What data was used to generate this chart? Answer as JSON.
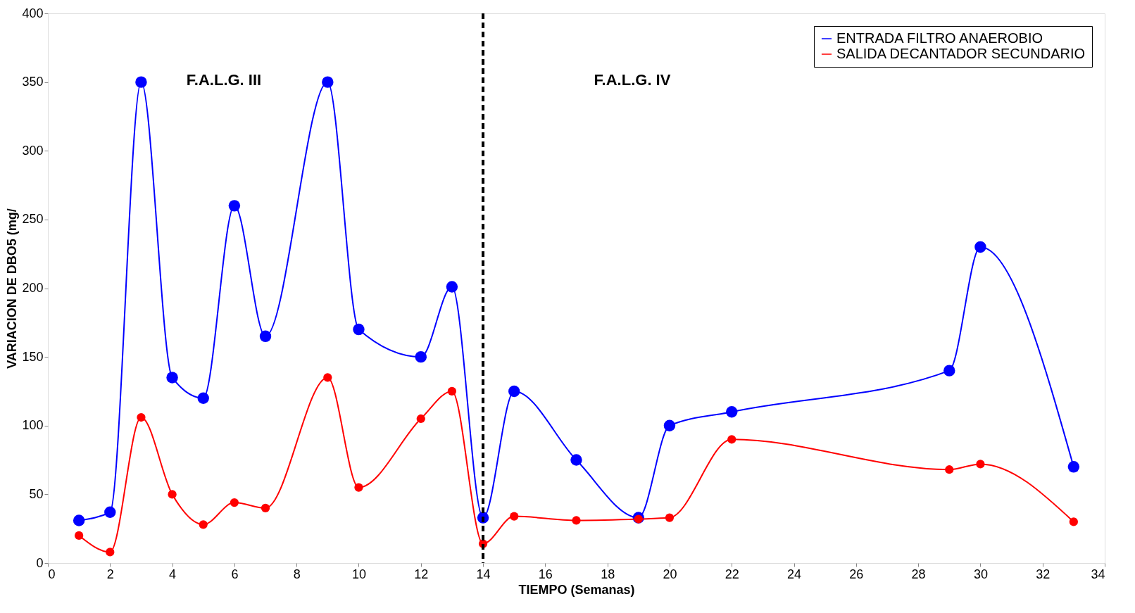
{
  "chart_data": {
    "type": "line",
    "xlabel": "TIEMPO (Semanas)",
    "ylabel": "VARIACION DE DBO5 (mg/",
    "x": [
      1,
      2,
      3,
      4,
      5,
      6,
      7,
      9,
      10,
      12,
      13,
      14,
      15,
      17,
      19,
      20,
      22,
      29,
      30,
      33
    ],
    "series": [
      {
        "name": "ENTRADA FILTRO ANAEROBIO",
        "color": "#0000ff",
        "values": [
          31,
          37,
          350,
          135,
          120,
          260,
          165,
          350,
          170,
          150,
          201,
          33,
          125,
          75,
          33,
          100,
          110,
          140,
          230,
          70
        ]
      },
      {
        "name": "SALIDA DECANTADOR SECUNDARIO",
        "color": "#ff0000",
        "values": [
          20,
          8,
          106,
          50,
          28,
          44,
          40,
          135,
          55,
          105,
          125,
          14,
          34,
          31,
          32,
          33,
          90,
          68,
          72,
          30
        ]
      }
    ],
    "xlim": [
      0,
      34
    ],
    "xticks": [
      0,
      2,
      4,
      6,
      8,
      10,
      12,
      14,
      16,
      18,
      20,
      22,
      24,
      26,
      28,
      30,
      32,
      34
    ],
    "ylim": [
      0,
      400
    ],
    "yticks": [
      0,
      50,
      100,
      150,
      200,
      250,
      300,
      350,
      400
    ],
    "ref_lines": [
      {
        "axis": "x",
        "value": 14,
        "color": "#000000",
        "line_style": "dashed"
      }
    ],
    "annotations": [
      "F.A.L.G. III",
      "F.A.L.G. IV"
    ],
    "grid": false,
    "legend": "top right",
    "marker": "circle",
    "line_style": "solid"
  }
}
